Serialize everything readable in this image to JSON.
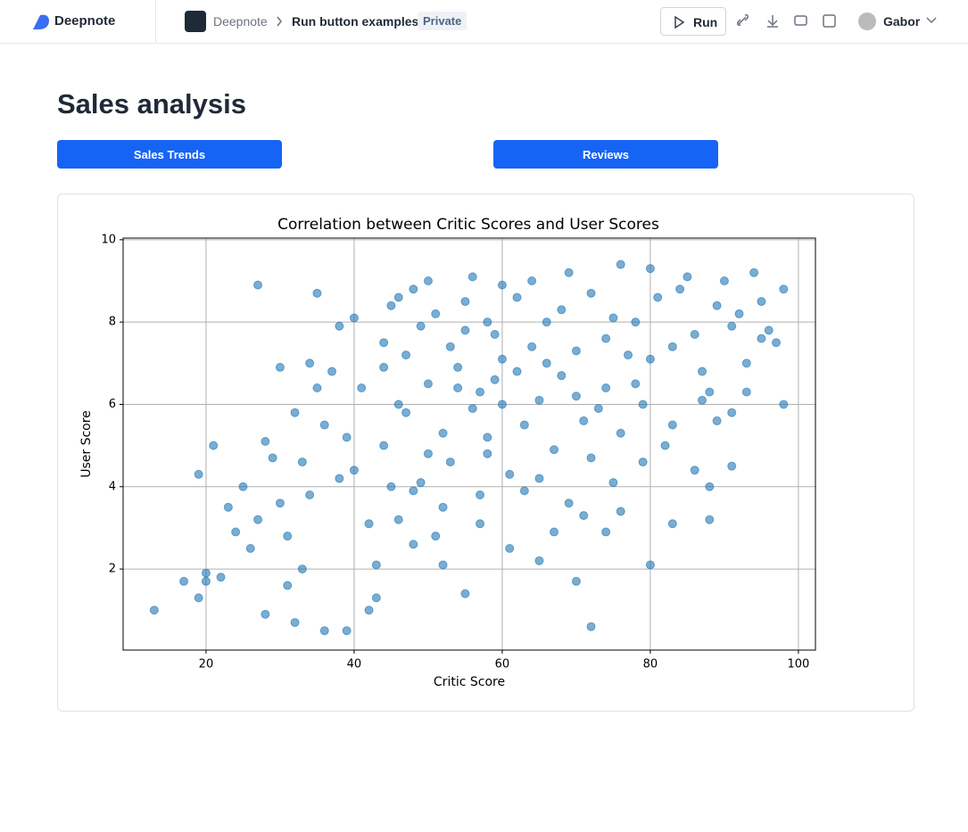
{
  "header": {
    "logo": "Deepnote",
    "workspace": "Deepnote",
    "notebook": "Run button examples",
    "badge": "Private",
    "run": "Run",
    "user": "Gabor"
  },
  "page": {
    "title": "Sales analysis",
    "buttons": [
      "Sales Trends",
      "Reviews"
    ]
  },
  "chart_data": {
    "type": "scatter",
    "title": "Correlation between Critic Scores and User Scores",
    "x_label": "Critic Score",
    "y_label": "User Score",
    "color": "#1f77b4",
    "alpha": 0.6,
    "grid": true,
    "xlim": [
      8.8,
      102.3
    ],
    "ylim": [
      0.03,
      10.04
    ],
    "xticks": [
      20,
      40,
      60,
      80,
      100
    ],
    "yticks": [
      2,
      4,
      6,
      8,
      10
    ],
    "x": [
      13,
      17,
      19,
      20,
      20,
      22,
      21,
      19,
      27,
      35,
      28,
      32,
      36,
      39,
      42,
      43,
      72,
      70,
      80,
      65,
      98,
      98,
      97,
      91,
      88,
      88,
      83,
      76,
      74,
      55,
      23,
      25,
      26,
      28,
      30,
      31,
      33,
      24,
      27,
      29,
      30,
      32,
      34,
      35,
      36,
      37,
      38,
      33,
      31,
      34,
      38,
      40,
      41,
      39,
      42,
      44,
      43,
      45,
      46,
      40,
      44,
      46,
      47,
      48,
      49,
      50,
      48,
      47,
      45,
      49,
      50,
      52,
      51,
      53,
      54,
      55,
      52,
      53,
      56,
      51,
      56,
      57,
      58,
      59,
      60,
      57,
      58,
      59,
      60,
      61,
      62,
      63,
      64,
      65,
      66,
      67,
      68,
      69,
      70,
      71,
      62,
      64,
      66,
      68,
      70,
      72,
      74,
      76,
      78,
      80,
      73,
      75,
      77,
      79,
      81,
      83,
      85,
      87,
      89,
      91,
      72,
      74,
      76,
      78,
      80,
      82,
      84,
      86,
      88,
      90,
      92,
      93,
      94,
      95,
      96,
      93,
      95,
      91,
      89,
      86,
      63,
      67,
      71,
      75,
      79,
      83,
      87,
      61,
      65,
      69,
      55,
      58,
      60,
      54,
      57,
      52,
      50,
      48,
      46,
      44
    ],
    "values": [
      1.0,
      1.7,
      1.3,
      1.7,
      1.9,
      1.8,
      5.0,
      4.3,
      8.9,
      8.7,
      0.9,
      0.7,
      0.5,
      0.5,
      1.0,
      1.3,
      0.6,
      1.7,
      2.1,
      2.2,
      6.0,
      8.8,
      7.5,
      4.5,
      3.2,
      4.0,
      3.1,
      3.4,
      2.9,
      1.4,
      3.5,
      4.0,
      2.5,
      5.1,
      3.6,
      2.8,
      4.6,
      2.9,
      3.2,
      4.7,
      6.9,
      5.8,
      7.0,
      6.4,
      5.5,
      6.8,
      4.2,
      2.0,
      1.6,
      3.8,
      7.9,
      8.1,
      6.4,
      5.2,
      3.1,
      7.5,
      2.1,
      8.4,
      6.0,
      4.4,
      5.0,
      3.2,
      7.2,
      8.8,
      4.1,
      6.5,
      2.6,
      5.8,
      4.0,
      7.9,
      9.0,
      5.3,
      8.2,
      4.6,
      6.9,
      8.5,
      3.5,
      7.4,
      5.9,
      2.8,
      9.1,
      6.3,
      4.8,
      7.7,
      8.9,
      3.8,
      5.2,
      6.6,
      7.1,
      4.3,
      8.6,
      5.5,
      7.4,
      6.1,
      8.0,
      4.9,
      6.7,
      9.2,
      7.3,
      5.6,
      6.8,
      9.0,
      7.0,
      8.3,
      6.2,
      8.7,
      7.6,
      9.4,
      6.5,
      9.3,
      5.9,
      8.1,
      7.2,
      6.0,
      8.6,
      7.4,
      9.1,
      6.8,
      8.4,
      7.9,
      4.7,
      6.4,
      5.3,
      8.0,
      7.1,
      5.0,
      8.8,
      7.7,
      6.3,
      9.0,
      8.2,
      7.0,
      9.2,
      8.5,
      7.8,
      6.3,
      7.6,
      5.8,
      5.6,
      4.4,
      3.9,
      2.9,
      3.3,
      4.1,
      4.6,
      5.5,
      6.1,
      2.5,
      4.2,
      3.6,
      7.8,
      8.0,
      6.0,
      6.4,
      3.1,
      2.1,
      4.8,
      3.9,
      8.6,
      6.9
    ]
  }
}
